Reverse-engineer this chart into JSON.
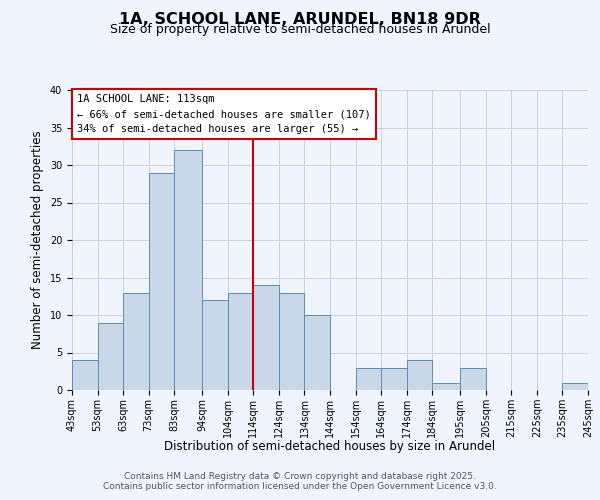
{
  "title_line1": "1A, SCHOOL LANE, ARUNDEL, BN18 9DR",
  "title_line2": "Size of property relative to semi-detached houses in Arundel",
  "xlabel": "Distribution of semi-detached houses by size in Arundel",
  "ylabel": "Number of semi-detached properties",
  "bin_edges": [
    43,
    53,
    63,
    73,
    83,
    94,
    104,
    114,
    124,
    134,
    144,
    154,
    164,
    174,
    184,
    195,
    205,
    215,
    225,
    235,
    245
  ],
  "counts": [
    4,
    9,
    13,
    29,
    32,
    12,
    13,
    14,
    13,
    10,
    0,
    3,
    3,
    4,
    1,
    3,
    0,
    0,
    0,
    1
  ],
  "tick_labels": [
    "43sqm",
    "53sqm",
    "63sqm",
    "73sqm",
    "83sqm",
    "94sqm",
    "104sqm",
    "114sqm",
    "124sqm",
    "134sqm",
    "144sqm",
    "154sqm",
    "164sqm",
    "174sqm",
    "184sqm",
    "195sqm",
    "205sqm",
    "215sqm",
    "225sqm",
    "235sqm",
    "245sqm"
  ],
  "bar_color": "#c8d8e8",
  "bar_edge_color": "#5b8db8",
  "vline_x": 114,
  "vline_color": "#cc0000",
  "ylim": [
    0,
    40
  ],
  "yticks": [
    0,
    5,
    10,
    15,
    20,
    25,
    30,
    35,
    40
  ],
  "annotation_title": "1A SCHOOL LANE: 113sqm",
  "annotation_line1": "← 66% of semi-detached houses are smaller (107)",
  "annotation_line2": "34% of semi-detached houses are larger (55) →",
  "footer_line1": "Contains HM Land Registry data © Crown copyright and database right 2025.",
  "footer_line2": "Contains public sector information licensed under the Open Government Licence v3.0.",
  "background_color": "#f0f4ff",
  "grid_color": "#c8d0e0",
  "title_fontsize": 11.5,
  "subtitle_fontsize": 9,
  "axis_label_fontsize": 8.5,
  "tick_fontsize": 7,
  "annotation_fontsize": 7.5,
  "footer_fontsize": 6.5
}
